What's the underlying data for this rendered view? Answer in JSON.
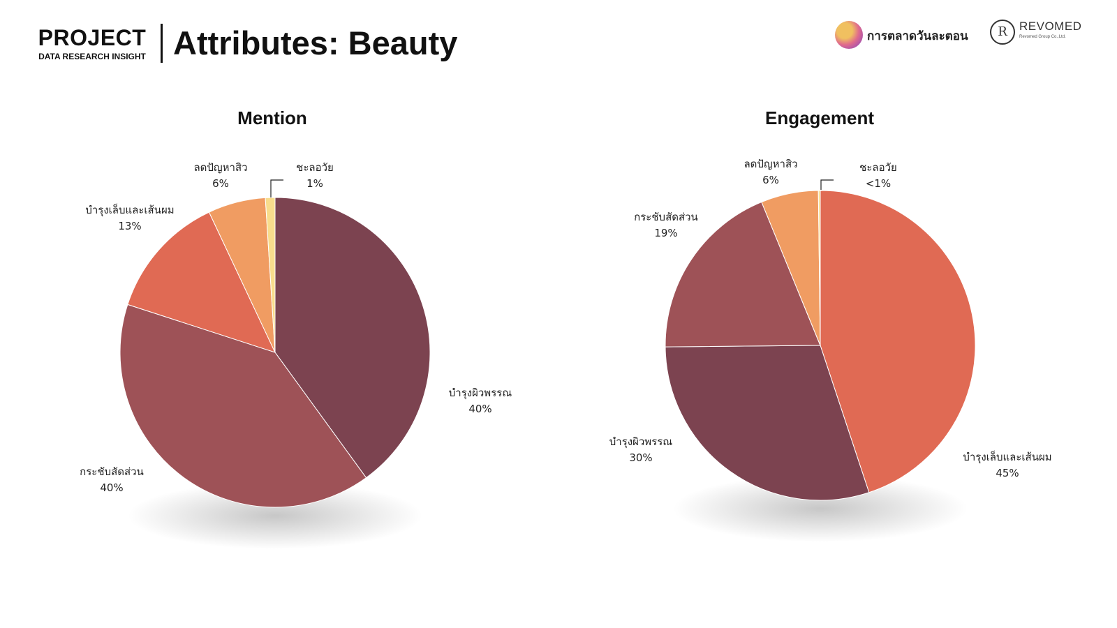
{
  "header": {
    "project_title": "PROJECT",
    "project_subtitle": "DATA RESEARCH INSIGHT",
    "page_title": "Attributes: Beauty",
    "logo_marketing_text": "การตลาดวันละตอน",
    "logo_revomed_name": "REVOMED",
    "logo_revomed_sub": "Revomed Group Co.,Ltd.",
    "logo_revomed_mark": "R"
  },
  "colors": {
    "maroon": "#7c4350",
    "rose": "#9e5257",
    "coral": "#e06a54",
    "apricot": "#f09c62",
    "pale_yellow": "#f8dc8c"
  },
  "chart_data": [
    {
      "type": "pie",
      "title": "Mention",
      "slices": [
        {
          "label": "บำรุงผิวพรรณ",
          "value": 40,
          "display": "40%",
          "color": "#7c4350"
        },
        {
          "label": "กระชับสัดส่วน",
          "value": 40,
          "display": "40%",
          "color": "#9e5257"
        },
        {
          "label": "บำรุงเล็บและเส้นผม",
          "value": 13,
          "display": "13%",
          "color": "#e06a54"
        },
        {
          "label": "ลดปัญหาสิว",
          "value": 6,
          "display": "6%",
          "color": "#f09c62"
        },
        {
          "label": "ชะลอวัย",
          "value": 1,
          "display": "1%",
          "color": "#f8dc8c"
        }
      ]
    },
    {
      "type": "pie",
      "title": "Engagement",
      "slices": [
        {
          "label": "บำรุงเล็บและเส้นผม",
          "value": 45,
          "display": "45%",
          "color": "#e06a54"
        },
        {
          "label": "บำรุงผิวพรรณ",
          "value": 30,
          "display": "30%",
          "color": "#7c4350"
        },
        {
          "label": "กระชับสัดส่วน",
          "value": 19,
          "display": "19%",
          "color": "#9e5257"
        },
        {
          "label": "ลดปัญหาสิว",
          "value": 6,
          "display": "6%",
          "color": "#f09c62"
        },
        {
          "label": "ชะลอวัย",
          "value": 0.2,
          "display": "<1%",
          "color": "#f8dc8c"
        }
      ]
    }
  ]
}
